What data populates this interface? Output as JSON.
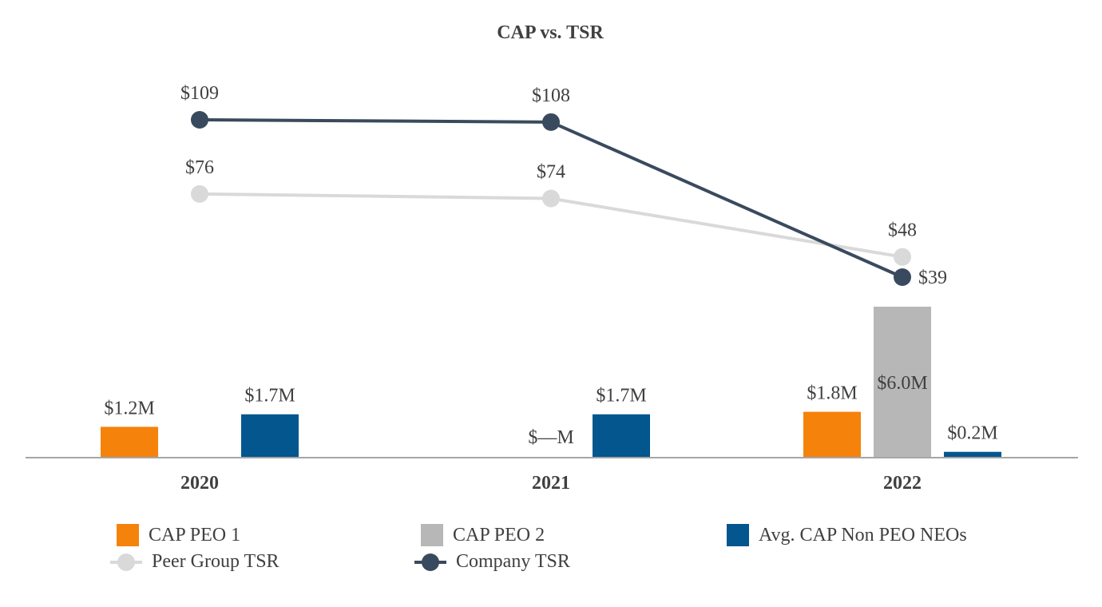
{
  "chart_data": {
    "type": "bar+line",
    "title": "CAP vs. TSR",
    "categories": [
      "2020",
      "2021",
      "2022"
    ],
    "bar_series": [
      {
        "name": "CAP PEO 1",
        "color": "#F5820B",
        "values": [
          1.2,
          0,
          1.8
        ],
        "labels": [
          "$1.2M",
          "",
          "$1.8M"
        ]
      },
      {
        "name": "CAP PEO 2",
        "color": "#B7B7B7",
        "values": [
          0,
          0,
          6.0
        ],
        "labels": [
          "",
          "$—M",
          "$6.0M"
        ]
      },
      {
        "name": "Avg. CAP Non PEO NEOs",
        "color": "#03568E",
        "values": [
          1.7,
          1.7,
          0.2
        ],
        "labels": [
          "$1.7M",
          "$1.7M",
          "$0.2M"
        ]
      }
    ],
    "line_series": [
      {
        "name": "Peer Group TSR",
        "color": "#D9D9D9",
        "values": [
          76,
          74,
          48
        ],
        "labels": [
          "$76",
          "$74",
          "$48"
        ]
      },
      {
        "name": "Company TSR",
        "color": "#3A4A5E",
        "values": [
          109,
          108,
          39
        ],
        "labels": [
          "$109",
          "$108",
          "$39"
        ]
      }
    ],
    "bar_axis": {
      "min": 0,
      "max": 6.0,
      "unit": "$M"
    },
    "line_axis": {
      "min": 0,
      "max": 109,
      "unit": "$"
    },
    "grid": false,
    "legend_position": "bottom"
  }
}
